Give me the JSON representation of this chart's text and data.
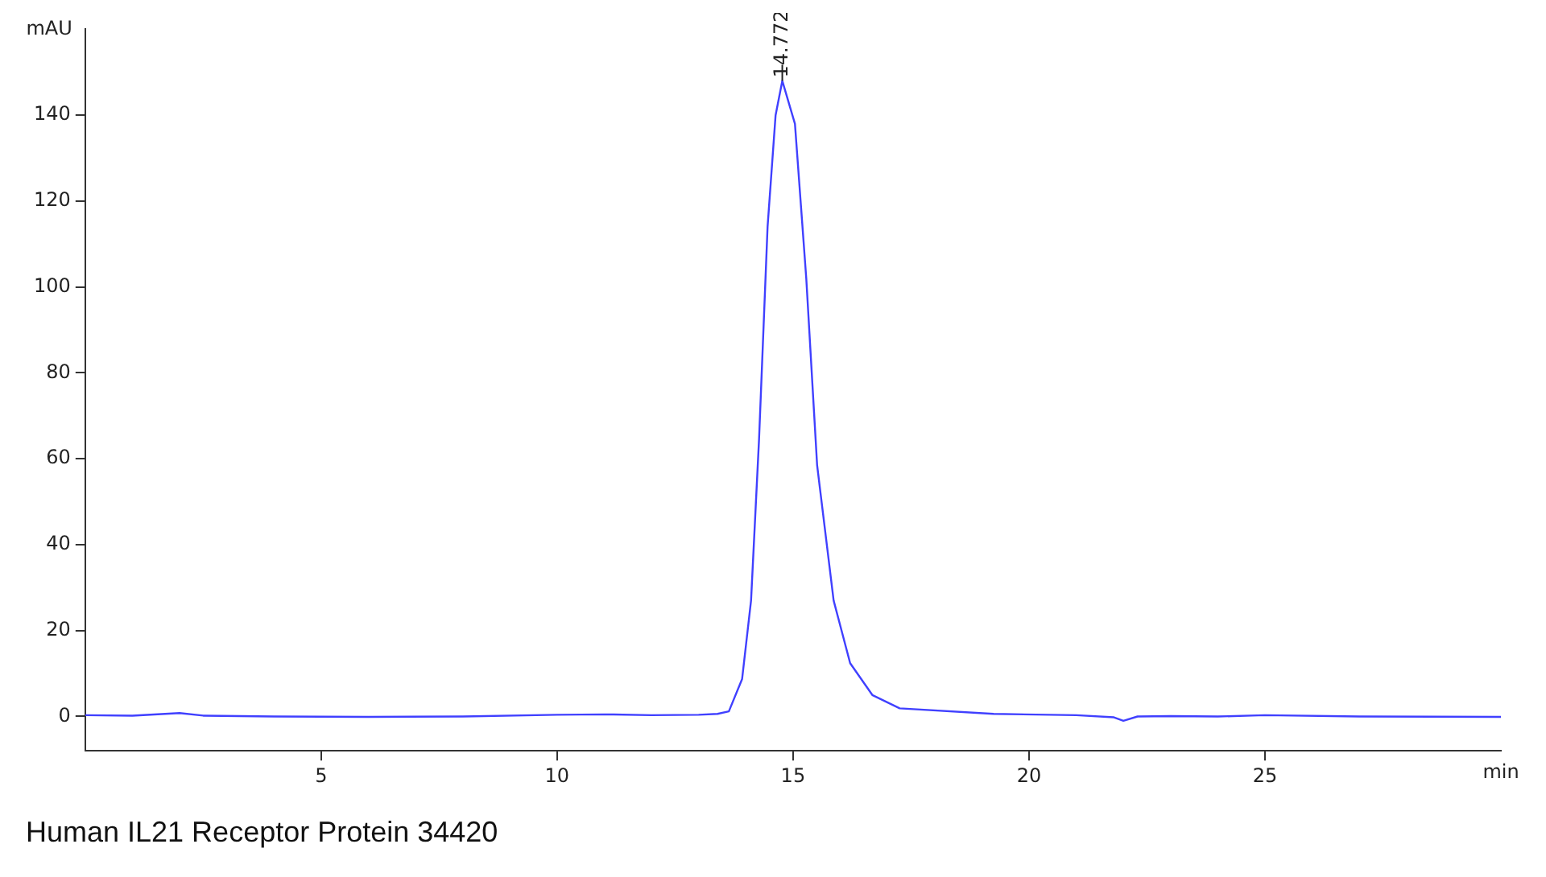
{
  "chart_data": {
    "type": "line",
    "xlabel": "min",
    "ylabel": "mAU",
    "xlim": [
      0,
      30
    ],
    "xticks": [
      5,
      10,
      15,
      20,
      25
    ],
    "ylim": [
      -8,
      160
    ],
    "yticks": [
      0,
      20,
      40,
      60,
      80,
      100,
      120,
      140
    ],
    "grid": false,
    "legend": false,
    "marker": "none",
    "line_style": "solid",
    "series": [
      {
        "color": "#4040ff",
        "x": [
          0,
          1,
          2,
          2.5,
          4,
          6,
          8,
          10,
          11,
          12,
          13,
          13.4,
          13.64,
          13.92,
          14.11,
          14.28,
          14.46,
          14.63,
          14.772,
          15.04,
          15.28,
          15.51,
          15.86,
          16.21,
          16.68,
          17.26,
          19.25,
          21,
          21.8,
          22,
          22.3,
          23,
          24,
          25,
          27,
          30
        ],
        "values": [
          0.3,
          0.2,
          0.8,
          0.2,
          0,
          -0.1,
          0,
          0.4,
          0.5,
          0.3,
          0.4,
          0.6,
          1.2,
          8.7,
          27,
          64.7,
          114,
          140,
          148,
          138,
          102,
          58.5,
          27,
          12.4,
          5,
          1.9,
          0.6,
          0.3,
          -0.2,
          -1,
          0,
          0.1,
          0,
          0.3,
          0,
          -0.1
        ]
      }
    ],
    "annotations": [
      {
        "text": "14.772",
        "x": 14.772,
        "y": 148
      },
      "Human IL21 Receptor Protein 34420"
    ]
  }
}
